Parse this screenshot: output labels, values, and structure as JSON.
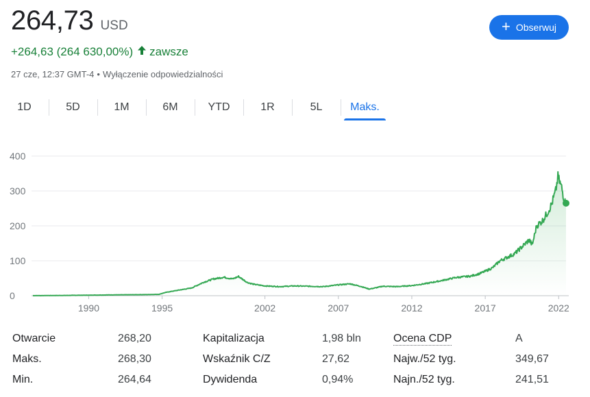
{
  "quote": {
    "price": "264,73",
    "currency": "USD",
    "change": "+264,63 (264 630,00%)",
    "change_arrow": "🡑",
    "period": "zawsze",
    "timestamp": "27 cze, 12:37 GMT-4",
    "separator": "•",
    "disclaimer": "Wyłączenie odpowiedzialności"
  },
  "follow_button": {
    "label": "Obserwuj",
    "icon": "plus-icon",
    "color": "#1a73e8"
  },
  "tabs": [
    {
      "label": "1D"
    },
    {
      "label": "5D"
    },
    {
      "label": "1M"
    },
    {
      "label": "6M"
    },
    {
      "label": "YTD"
    },
    {
      "label": "1R"
    },
    {
      "label": "5L"
    },
    {
      "label": "Maks.",
      "active": true
    }
  ],
  "chart_data": {
    "type": "area",
    "title": "",
    "xlabel": "",
    "ylabel": "",
    "ylim": [
      0,
      400
    ],
    "xlim": [
      1986.2,
      2022.5
    ],
    "y_ticks": [
      0,
      100,
      200,
      300,
      400
    ],
    "y_tick_labels": [
      "0",
      "100",
      "200",
      "300",
      "400"
    ],
    "x_ticks": [
      1990,
      1995,
      2002,
      2007,
      2012,
      2017,
      2022
    ],
    "x_tick_labels": [
      "1990",
      "1995",
      "2002",
      "2007",
      "2012",
      "2017",
      "2022"
    ],
    "grid": true,
    "line_color": "#34a853",
    "series": [
      {
        "x": [
          1986.2,
          1988,
          1990,
          1992,
          1994,
          1994.8,
          1995.2,
          1996,
          1997,
          1997.8,
          1998.5,
          1999.2,
          1999.8,
          2000.2,
          2000.8,
          2001.2,
          2002,
          2003,
          2004,
          2005,
          2006,
          2007,
          2007.8,
          2008.5,
          2009.1,
          2009.6,
          2010,
          2011,
          2012,
          2013,
          2014,
          2015,
          2016,
          2016.6,
          2017,
          2017.5,
          2018,
          2018.5,
          2019,
          2019.5,
          2020,
          2020.2,
          2020.5,
          2020.9,
          2021.2,
          2021.5,
          2021.8,
          2021.95,
          2022.2,
          2022.4,
          2022.5
        ],
        "values": [
          0.1,
          0.6,
          1.5,
          2.5,
          3.2,
          4,
          9,
          15,
          22,
          38,
          48,
          53,
          48,
          55,
          38,
          33,
          28,
          26,
          28,
          27,
          26,
          31,
          34,
          27,
          19,
          23,
          27,
          26,
          29,
          35,
          43,
          52,
          56,
          63,
          70,
          80,
          100,
          110,
          120,
          140,
          160,
          145,
          200,
          215,
          235,
          260,
          300,
          340,
          310,
          270,
          265
        ]
      }
    ]
  },
  "stats": [
    {
      "label": "Otwarcie",
      "value": "268,20"
    },
    {
      "label": "Maks.",
      "value": "268,30"
    },
    {
      "label": "Min.",
      "value": "264,64"
    },
    {
      "label": "Kapitalizacja",
      "value": "1,98 bln"
    },
    {
      "label": "Wskaźnik C/Z",
      "value": "27,62"
    },
    {
      "label": "Dywidenda",
      "value": "0,94%"
    },
    {
      "label": "Ocena CDP",
      "value": "A"
    },
    {
      "label": "Najw./52 tyg.",
      "value": "349,67"
    },
    {
      "label": "Najn./52 tyg.",
      "value": "241,51"
    }
  ]
}
